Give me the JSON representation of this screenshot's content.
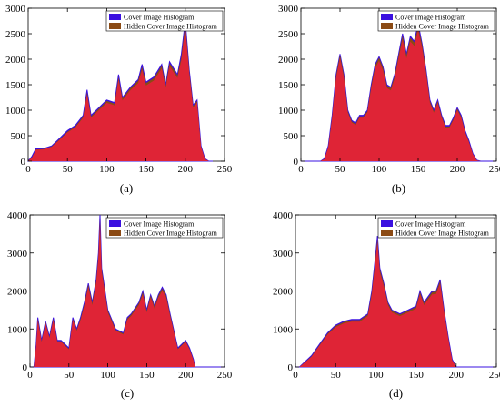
{
  "colors": {
    "cover": "#3a10e0",
    "hidden": "#8b4a14",
    "overlap": "#e8203a"
  },
  "legend": {
    "cover_label": "Cover Image Histogram",
    "hidden_label": "Hidden Cover Image Histogram"
  },
  "chart_data": [
    {
      "panel_label": "(a)",
      "type": "area",
      "x": [
        0,
        5,
        10,
        20,
        30,
        40,
        50,
        60,
        70,
        75,
        80,
        90,
        100,
        110,
        115,
        120,
        130,
        140,
        145,
        150,
        160,
        170,
        175,
        180,
        190,
        195,
        200,
        205,
        210,
        215,
        220,
        225,
        230,
        235
      ],
      "series": [
        {
          "name": "Cover Image Histogram",
          "values": [
            0,
            100,
            250,
            250,
            300,
            450,
            600,
            700,
            900,
            1400,
            900,
            1050,
            1200,
            1150,
            1700,
            1250,
            1450,
            1600,
            1900,
            1550,
            1650,
            1900,
            1500,
            1950,
            1700,
            2100,
            2750,
            1800,
            1100,
            1200,
            300,
            50,
            0,
            0
          ]
        },
        {
          "name": "Hidden Cover Image Histogram",
          "values": [
            0,
            80,
            230,
            240,
            290,
            430,
            580,
            680,
            880,
            1350,
            880,
            1030,
            1180,
            1130,
            1650,
            1230,
            1430,
            1580,
            1850,
            1530,
            1630,
            1870,
            1480,
            1920,
            1680,
            2050,
            2700,
            1780,
            1080,
            1180,
            290,
            40,
            0,
            0
          ]
        }
      ],
      "xlim": [
        0,
        250
      ],
      "ylim": [
        0,
        3000
      ],
      "xticks": [
        0,
        50,
        100,
        150,
        200,
        250
      ],
      "yticks": [
        0,
        500,
        1000,
        1500,
        2000,
        2500,
        3000
      ]
    },
    {
      "panel_label": "(b)",
      "type": "area",
      "x": [
        0,
        25,
        30,
        35,
        40,
        45,
        50,
        55,
        60,
        65,
        70,
        75,
        80,
        85,
        90,
        95,
        100,
        105,
        110,
        115,
        120,
        125,
        130,
        135,
        140,
        145,
        150,
        155,
        160,
        165,
        170,
        175,
        180,
        185,
        190,
        195,
        200,
        205,
        210,
        215,
        220,
        225,
        230,
        250
      ],
      "series": [
        {
          "name": "Cover Image Histogram",
          "values": [
            0,
            0,
            50,
            300,
            900,
            1700,
            2100,
            1700,
            1000,
            800,
            750,
            900,
            900,
            1000,
            1500,
            1900,
            2050,
            1850,
            1500,
            1450,
            1700,
            2100,
            2500,
            2100,
            2450,
            2350,
            2700,
            2300,
            1800,
            1200,
            1000,
            1200,
            900,
            700,
            700,
            850,
            1050,
            900,
            600,
            400,
            150,
            20,
            0,
            0
          ]
        },
        {
          "name": "Hidden Cover Image Histogram",
          "values": [
            0,
            0,
            40,
            280,
            880,
            1680,
            2080,
            1680,
            980,
            780,
            730,
            880,
            880,
            980,
            1480,
            1880,
            2030,
            1830,
            1480,
            1430,
            1680,
            2080,
            2460,
            2080,
            2420,
            2330,
            2650,
            2280,
            1780,
            1180,
            980,
            1180,
            880,
            680,
            680,
            830,
            1030,
            880,
            580,
            380,
            140,
            15,
            0,
            0
          ]
        }
      ],
      "xlim": [
        0,
        250
      ],
      "ylim": [
        0,
        3000
      ],
      "xticks": [
        0,
        50,
        100,
        150,
        200,
        250
      ],
      "yticks": [
        0,
        500,
        1000,
        1500,
        2000,
        2500,
        3000
      ]
    },
    {
      "panel_label": "(c)",
      "type": "area",
      "x": [
        0,
        5,
        8,
        10,
        15,
        20,
        25,
        30,
        35,
        40,
        50,
        55,
        60,
        65,
        70,
        75,
        80,
        85,
        88,
        90,
        92,
        95,
        100,
        110,
        120,
        125,
        130,
        140,
        145,
        150,
        155,
        160,
        165,
        170,
        175,
        180,
        190,
        200,
        205,
        210,
        212,
        250
      ],
      "series": [
        {
          "name": "Cover Image Histogram",
          "values": [
            0,
            0,
            600,
            1300,
            700,
            1200,
            800,
            1300,
            700,
            700,
            500,
            1300,
            1000,
            1300,
            1700,
            2200,
            1700,
            2300,
            3000,
            4000,
            2600,
            2200,
            1500,
            1000,
            900,
            1300,
            1400,
            1700,
            2000,
            1500,
            1900,
            1600,
            1900,
            2100,
            1900,
            1400,
            500,
            700,
            500,
            200,
            0,
            0
          ]
        },
        {
          "name": "Hidden Cover Image Histogram",
          "values": [
            0,
            0,
            580,
            1270,
            680,
            1180,
            780,
            1270,
            680,
            680,
            480,
            1270,
            980,
            1270,
            1670,
            2170,
            1680,
            2270,
            2950,
            3900,
            2570,
            2170,
            1480,
            980,
            880,
            1280,
            1380,
            1680,
            1970,
            1480,
            1880,
            1580,
            1880,
            2070,
            1880,
            1380,
            480,
            680,
            480,
            180,
            0,
            0
          ]
        }
      ],
      "xlim": [
        0,
        250
      ],
      "ylim": [
        0,
        4000
      ],
      "xticks": [
        0,
        50,
        100,
        150,
        200,
        250
      ],
      "yticks": [
        0,
        1000,
        2000,
        3000,
        4000
      ]
    },
    {
      "panel_label": "(d)",
      "type": "area",
      "x": [
        0,
        5,
        10,
        20,
        30,
        40,
        50,
        60,
        70,
        80,
        90,
        95,
        100,
        102,
        105,
        110,
        115,
        120,
        130,
        140,
        150,
        155,
        160,
        170,
        175,
        180,
        185,
        190,
        195,
        200,
        250
      ],
      "series": [
        {
          "name": "Cover Image Histogram",
          "values": [
            0,
            0,
            100,
            300,
            600,
            900,
            1100,
            1200,
            1250,
            1250,
            1400,
            2000,
            3000,
            3450,
            2600,
            2200,
            1700,
            1500,
            1400,
            1500,
            1600,
            2000,
            1700,
            2000,
            2000,
            2300,
            1500,
            800,
            200,
            0,
            0
          ]
        },
        {
          "name": "Hidden Cover Image Histogram",
          "values": [
            0,
            0,
            90,
            280,
            580,
            880,
            1080,
            1180,
            1230,
            1230,
            1380,
            1970,
            2950,
            3380,
            2570,
            2180,
            1680,
            1480,
            1380,
            1480,
            1580,
            1970,
            1680,
            1970,
            1980,
            2260,
            1480,
            780,
            180,
            0,
            0
          ]
        }
      ],
      "xlim": [
        0,
        250
      ],
      "ylim": [
        0,
        4000
      ],
      "xticks": [
        0,
        50,
        100,
        150,
        200,
        250
      ],
      "yticks": [
        0,
        1000,
        2000,
        3000,
        4000
      ]
    }
  ]
}
